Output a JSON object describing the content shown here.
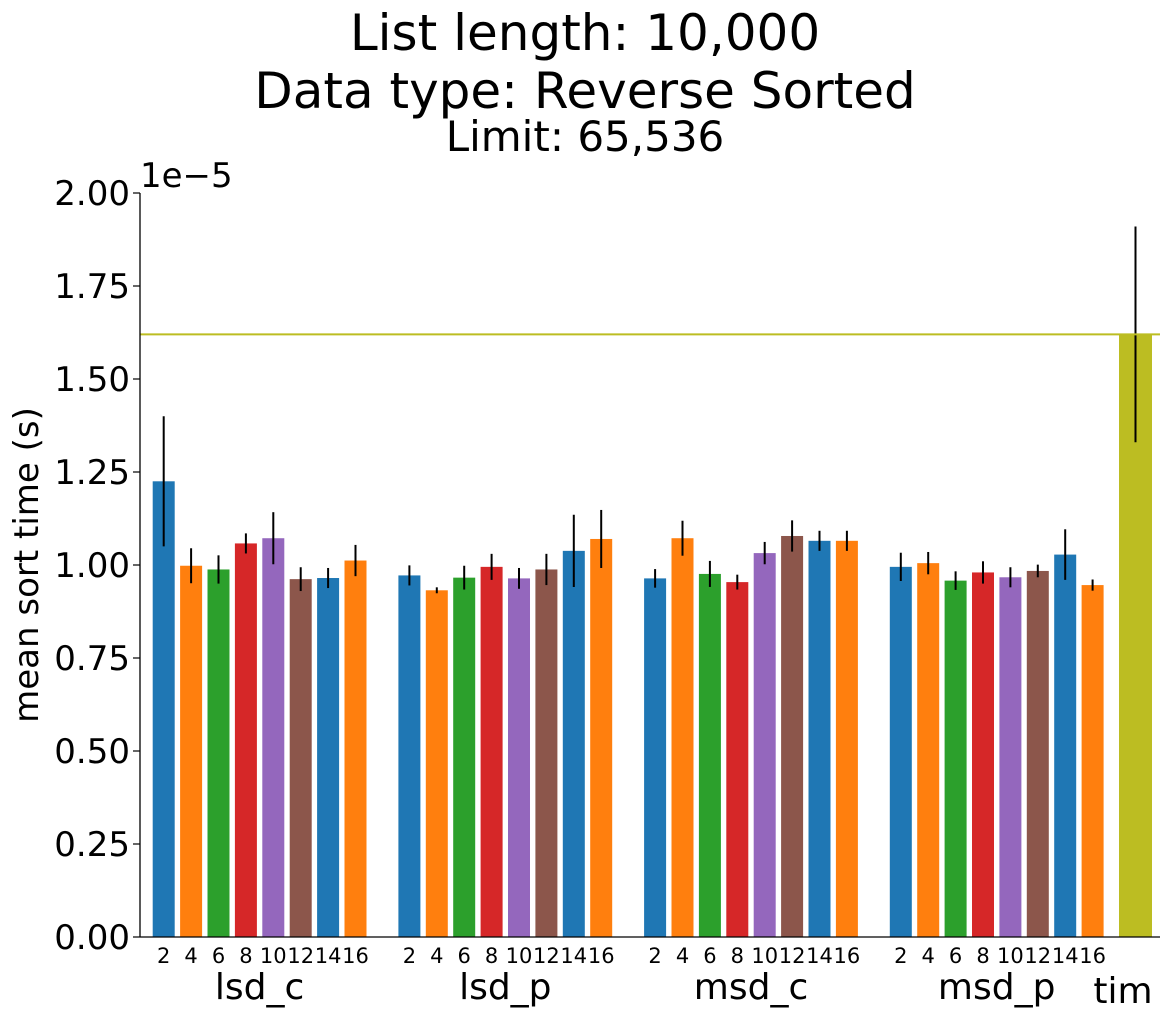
{
  "chart_data": {
    "type": "bar",
    "title_lines": [
      "List length: 10,000",
      "Data type: Reverse Sorted"
    ],
    "subtitle": "Limit: 65,536",
    "ylabel": "mean sort time (s)",
    "y_offset_label": "1e−5",
    "ylim": [
      0,
      2.0
    ],
    "yticks": [
      "0.00",
      "0.25",
      "0.50",
      "0.75",
      "1.00",
      "1.25",
      "1.50",
      "1.75",
      "2.00"
    ],
    "group_sublabels": [
      "2",
      "4",
      "6",
      "8",
      "10",
      "12",
      "14",
      "16"
    ],
    "groups": [
      {
        "name": "lsd_c",
        "values": [
          1.225,
          0.998,
          0.988,
          1.058,
          1.072,
          0.962,
          0.965,
          1.012
        ],
        "errors": [
          0.175,
          0.047,
          0.038,
          0.027,
          0.07,
          0.032,
          0.027,
          0.042
        ]
      },
      {
        "name": "lsd_p",
        "values": [
          0.972,
          0.932,
          0.966,
          0.995,
          0.964,
          0.988,
          1.038,
          1.07
        ],
        "errors": [
          0.027,
          0.008,
          0.032,
          0.035,
          0.028,
          0.042,
          0.097,
          0.078
        ]
      },
      {
        "name": "msd_c",
        "values": [
          0.964,
          1.072,
          0.976,
          0.954,
          1.032,
          1.078,
          1.065,
          1.065
        ],
        "errors": [
          0.025,
          0.047,
          0.035,
          0.02,
          0.03,
          0.042,
          0.027,
          0.027
        ]
      },
      {
        "name": "msd_p",
        "values": [
          0.995,
          1.005,
          0.958,
          0.98,
          0.967,
          0.984,
          1.028,
          0.946
        ],
        "errors": [
          0.038,
          0.03,
          0.025,
          0.03,
          0.027,
          0.017,
          0.068,
          0.015
        ]
      }
    ],
    "tim": {
      "name": "tim",
      "value": 1.62,
      "error": 0.29
    },
    "reference_line": 1.62,
    "colors": [
      "#1f77b4",
      "#ff7f0e",
      "#2ca02c",
      "#d62728",
      "#9467bd",
      "#8c564b",
      "#1f77b4",
      "#ff7f0e"
    ],
    "tim_color": "#bcbd22",
    "line_color": "#bcbd22",
    "grid": false,
    "legend": "none"
  }
}
